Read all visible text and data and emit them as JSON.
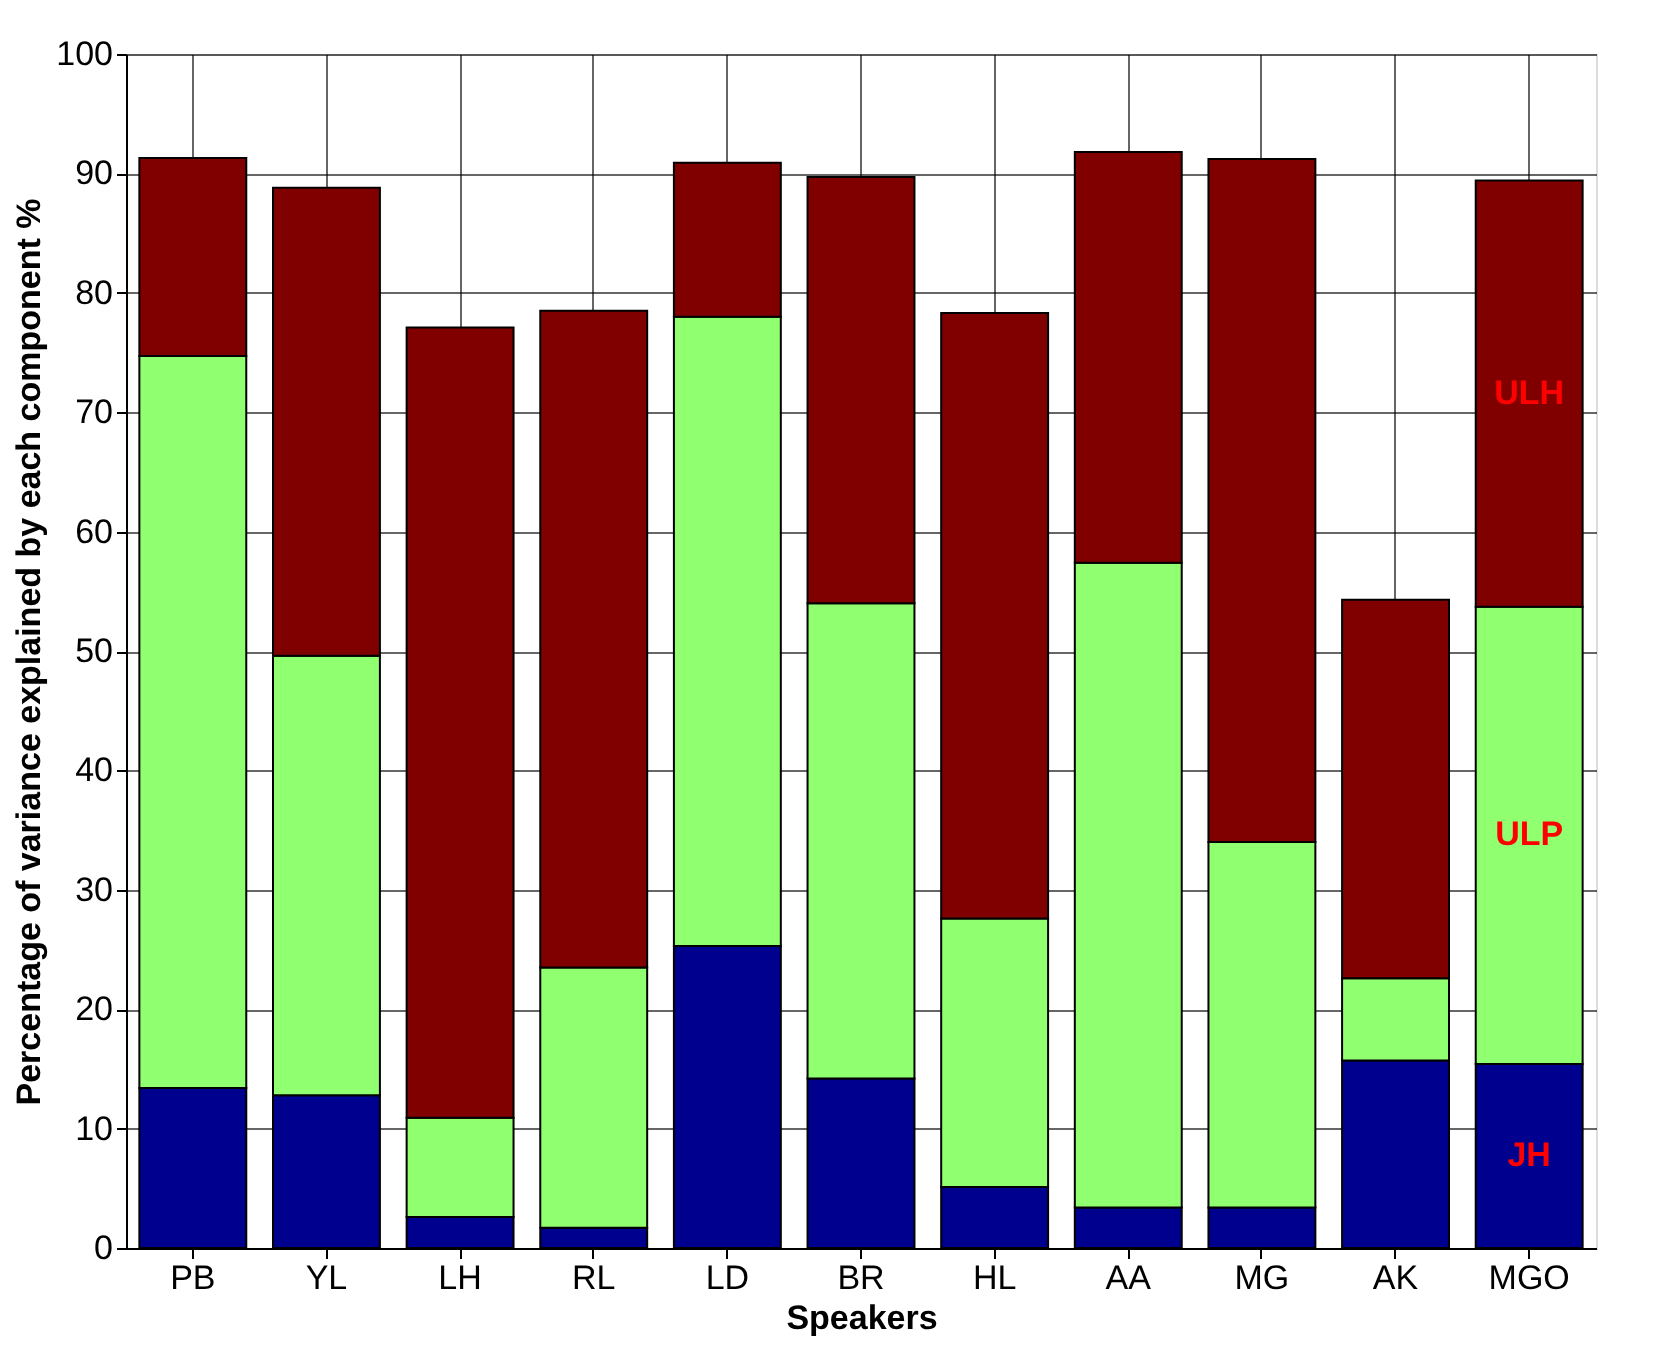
{
  "chart_data": {
    "type": "bar",
    "stacked": true,
    "xlabel": "Speakers",
    "ylabel": "Percentage of variance explained by each component %",
    "categories": [
      "PB",
      "YL",
      "LH",
      "RL",
      "LD",
      "BR",
      "HL",
      "AA",
      "MG",
      "AK",
      "MGO"
    ],
    "series": [
      {
        "name": "JH",
        "color": "#00008f",
        "values": [
          13.4,
          12.8,
          2.6,
          1.7,
          25.3,
          14.2,
          5.1,
          3.4,
          3.4,
          15.7,
          15.4
        ]
      },
      {
        "name": "ULP",
        "color": "#90ff70",
        "values": [
          61.3,
          36.8,
          8.3,
          21.8,
          52.7,
          39.8,
          22.5,
          54.0,
          30.6,
          6.9,
          38.3
        ]
      },
      {
        "name": "ULH",
        "color": "#800000",
        "values": [
          16.6,
          39.2,
          66.2,
          55.0,
          12.9,
          35.7,
          50.7,
          34.4,
          57.2,
          31.7,
          35.7
        ]
      }
    ],
    "ylim": [
      0,
      100
    ],
    "yticks": [
      0,
      10,
      20,
      30,
      40,
      50,
      60,
      70,
      80,
      90,
      100
    ],
    "grid": true,
    "legend": false
  }
}
